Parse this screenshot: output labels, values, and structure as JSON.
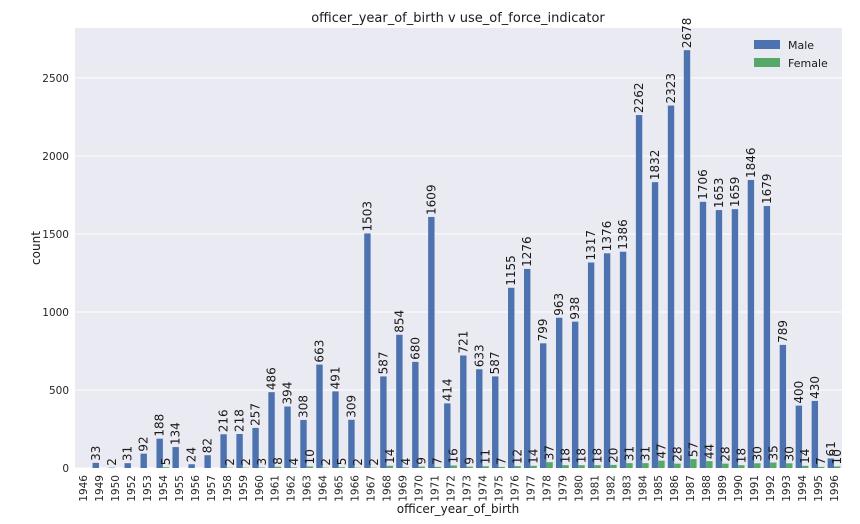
{
  "chart_data": {
    "type": "bar",
    "title": "officer_year_of_birth v use_of_force_indicator",
    "xlabel": "officer_year_of_birth",
    "ylabel": "count",
    "ylim": [
      0,
      2820
    ],
    "yticks": [
      0,
      500,
      1000,
      1500,
      2000,
      2500
    ],
    "grid": true,
    "legend_position": "top-right",
    "categories": [
      "1946",
      "1949",
      "1950",
      "1952",
      "1953",
      "1954",
      "1955",
      "1956",
      "1957",
      "1958",
      "1959",
      "1960",
      "1961",
      "1962",
      "1963",
      "1964",
      "1965",
      "1966",
      "1967",
      "1968",
      "1969",
      "1970",
      "1971",
      "1972",
      "1973",
      "1974",
      "1975",
      "1976",
      "1977",
      "1978",
      "1979",
      "1980",
      "1981",
      "1982",
      "1983",
      "1984",
      "1985",
      "1986",
      "1987",
      "1988",
      "1989",
      "1990",
      "1991",
      "1992",
      "1993",
      "1994",
      "1995",
      "1996"
    ],
    "series": [
      {
        "name": "Male",
        "color": "#4c72b0",
        "values": [
          null,
          33,
          2,
          31,
          92,
          188,
          134,
          24,
          82,
          216,
          218,
          257,
          486,
          394,
          308,
          663,
          491,
          309,
          1503,
          587,
          854,
          680,
          1609,
          414,
          721,
          633,
          587,
          1155,
          1276,
          799,
          963,
          938,
          1317,
          1376,
          1386,
          2262,
          1832,
          2323,
          2678,
          1706,
          1653,
          1659,
          1846,
          1679,
          789,
          400,
          430,
          61
        ]
      },
      {
        "name": "Female",
        "color": "#55a868",
        "values": [
          null,
          null,
          null,
          null,
          null,
          5,
          null,
          null,
          null,
          2,
          2,
          3,
          8,
          4,
          10,
          2,
          5,
          2,
          2,
          14,
          4,
          9,
          7,
          16,
          9,
          11,
          7,
          12,
          14,
          37,
          18,
          18,
          18,
          20,
          31,
          31,
          47,
          28,
          57,
          44,
          28,
          18,
          30,
          35,
          30,
          14,
          7,
          10
        ]
      }
    ]
  }
}
